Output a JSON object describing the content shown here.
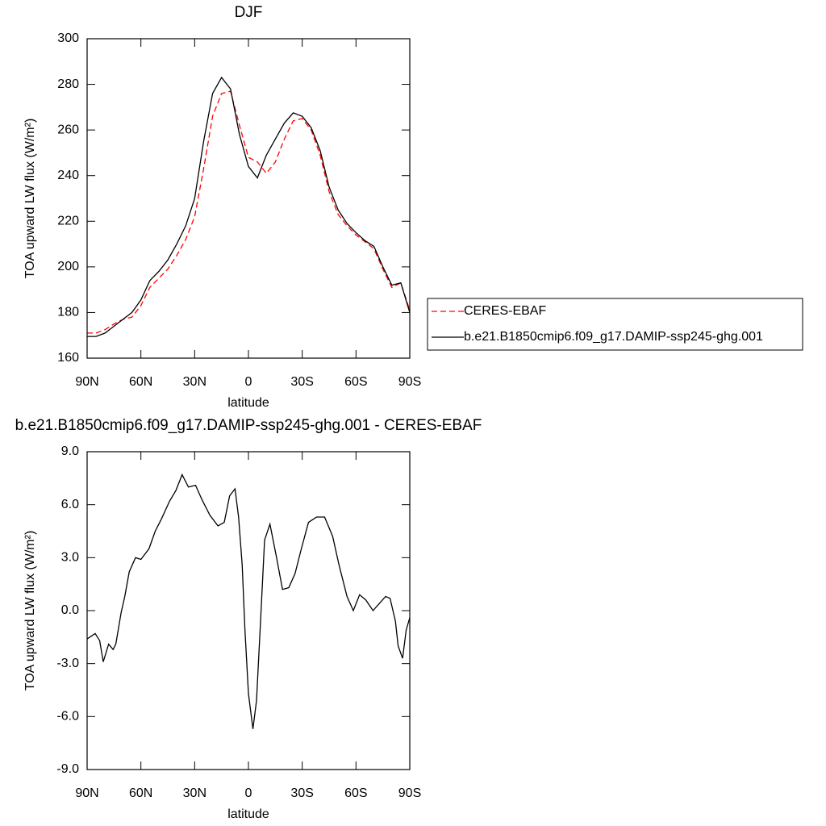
{
  "chart_data": [
    {
      "type": "line",
      "title": "DJF",
      "x_label": "latitude",
      "y_label": "TOA upward LW flux (W/m²)",
      "x": [
        90,
        85,
        80,
        75,
        70,
        65,
        60,
        55,
        50,
        45,
        40,
        35,
        30,
        25,
        20,
        15,
        10,
        5,
        0,
        -5,
        -10,
        -15,
        -20,
        -25,
        -30,
        -35,
        -40,
        -45,
        -50,
        -55,
        -60,
        -65,
        -70,
        -75,
        -80,
        -85,
        -90
      ],
      "series": [
        {
          "name": "CERES-EBAF",
          "color": "#ff0000",
          "line_style": "dashed",
          "values": [
            171,
            171,
            172.5,
            175,
            177,
            178,
            183,
            191,
            195,
            199,
            205,
            212,
            222,
            243,
            266,
            276,
            277,
            262,
            248,
            246,
            241,
            246,
            256,
            264,
            265,
            260,
            249,
            233,
            223,
            218,
            214,
            211,
            208,
            199,
            191,
            193,
            181
          ]
        },
        {
          "name": "b.e21.B1850cmip6.f09_g17.DAMIP-ssp245-ghg.001",
          "color": "#000000",
          "line_style": "solid",
          "values": [
            169.5,
            169.5,
            171,
            174,
            177,
            180,
            185.5,
            194,
            198,
            203,
            210,
            218,
            230,
            255,
            276,
            283,
            278,
            258,
            244,
            239,
            249,
            256,
            263,
            267.5,
            266,
            261,
            251,
            235,
            225,
            219,
            215,
            211.5,
            209,
            200,
            192,
            193,
            180
          ]
        }
      ],
      "xlim": [
        90,
        -90
      ],
      "xticks": [
        {
          "value": 90,
          "label": "90N"
        },
        {
          "value": 60,
          "label": "60N"
        },
        {
          "value": 30,
          "label": "30N"
        },
        0,
        {
          "value": -30,
          "label": "30S"
        },
        {
          "value": -60,
          "label": "60S"
        },
        {
          "value": -90,
          "label": "90S"
        }
      ],
      "ylim": [
        160,
        300
      ],
      "yticks": [
        160,
        180,
        200,
        220,
        240,
        260,
        280,
        300
      ],
      "legend": "right"
    },
    {
      "type": "line",
      "title": "b.e21.B1850cmip6.f09_g17.DAMIP-ssp245-ghg.001 - CERES-EBAF",
      "x_label": "latitude",
      "y_label": "TOA upward LW flux (W/m²)",
      "x": [
        90,
        85.5,
        83,
        81,
        78,
        75.5,
        74,
        71,
        69,
        66.5,
        63,
        60,
        55.5,
        52,
        48.5,
        44,
        40.5,
        37,
        33.5,
        29.5,
        26,
        21.5,
        17,
        13.5,
        10.5,
        7.5,
        5.5,
        3.5,
        2,
        0,
        -2.5,
        -4.5,
        -7,
        -9,
        -12,
        -15.5,
        -19,
        -22.5,
        -26,
        -29.5,
        -33.5,
        -38,
        -42.5,
        -47,
        -50.5,
        -55,
        -58.5,
        -62,
        -65.5,
        -69.5,
        -73,
        -76.5,
        -79,
        -82,
        -83.5,
        -86,
        -88,
        -90
      ],
      "series": [
        {
          "color": "#000000",
          "line_style": "solid",
          "values": [
            -1.6,
            -1.3,
            -1.7,
            -2.9,
            -1.9,
            -2.2,
            -1.9,
            -0.1,
            0.8,
            2.2,
            3.0,
            2.9,
            3.5,
            4.5,
            5.2,
            6.2,
            6.8,
            7.7,
            7.0,
            7.1,
            6.3,
            5.4,
            4.8,
            5.0,
            6.5,
            6.9,
            5.3,
            2.6,
            -1.0,
            -4.7,
            -6.7,
            -5.1,
            -0.1,
            4.0,
            4.9,
            3.1,
            1.2,
            1.3,
            2.1,
            3.5,
            5.0,
            5.3,
            5.3,
            4.2,
            2.6,
            0.8,
            0.0,
            0.9,
            0.6,
            0.0,
            0.4,
            0.8,
            0.7,
            -0.6,
            -2.0,
            -2.7,
            -1.1,
            -0.4
          ]
        }
      ],
      "xlim": [
        90,
        -90
      ],
      "xticks": [
        {
          "value": 90,
          "label": "90N"
        },
        {
          "value": 60,
          "label": "60N"
        },
        {
          "value": 30,
          "label": "30N"
        },
        0,
        {
          "value": -30,
          "label": "30S"
        },
        {
          "value": -60,
          "label": "60S"
        },
        {
          "value": -90,
          "label": "90S"
        }
      ],
      "ylim": [
        -9,
        9
      ],
      "yticks": [
        {
          "value": -9,
          "label": "-9.0"
        },
        {
          "value": -6,
          "label": "-6.0"
        },
        {
          "value": -3,
          "label": "-3.0"
        },
        {
          "value": 0,
          "label": "0.0"
        },
        {
          "value": 3,
          "label": "3.0"
        },
        {
          "value": 6,
          "label": "6.0"
        },
        {
          "value": 9,
          "label": "9.0"
        }
      ]
    }
  ]
}
